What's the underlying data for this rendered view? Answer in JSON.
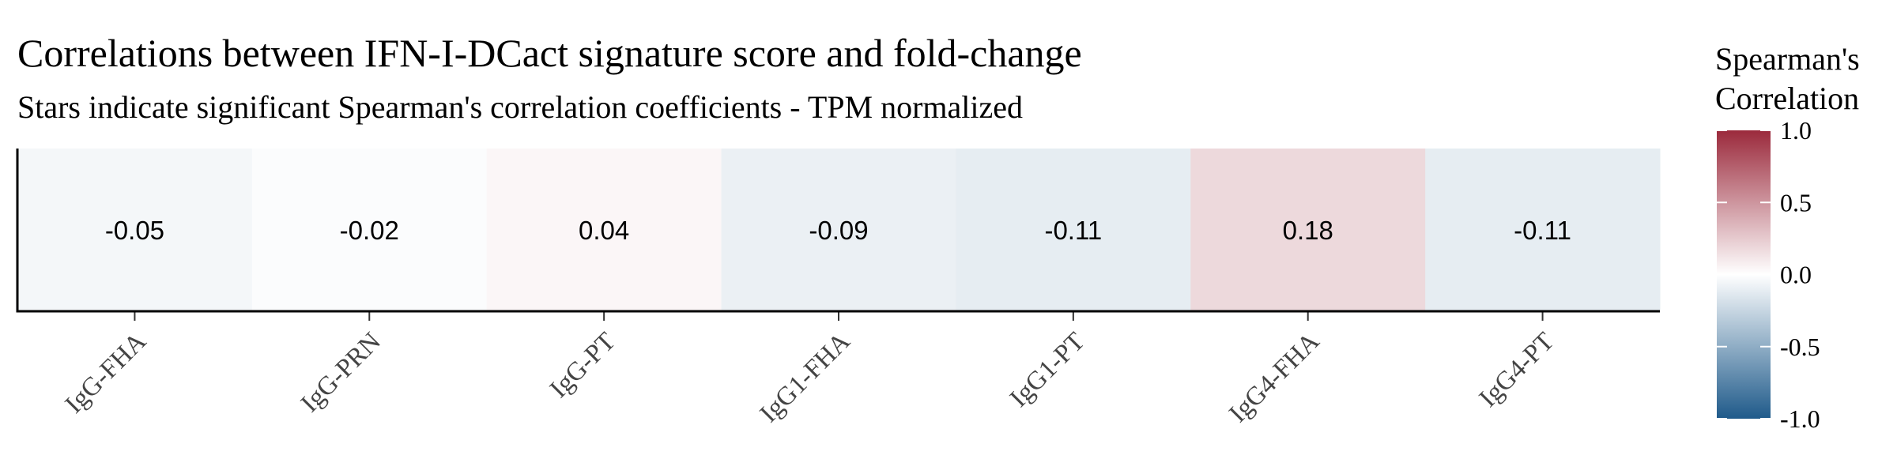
{
  "chart_data": {
    "type": "heatmap",
    "title": "Correlations between IFN-I-DCact signature score and fold-change",
    "subtitle": "Stars indicate significant Spearman's correlation coefficients - TPM normalized",
    "categories": [
      "IgG-FHA",
      "IgG-PRN",
      "IgG-PT",
      "IgG1-FHA",
      "IgG1-PT",
      "IgG4-FHA",
      "IgG4-PT"
    ],
    "values": [
      -0.05,
      -0.02,
      0.04,
      -0.09,
      -0.11,
      0.18,
      -0.11
    ],
    "value_labels": [
      "-0.05",
      "-0.02",
      "0.04",
      "-0.09",
      "-0.11",
      "0.18",
      "-0.11"
    ],
    "legend": {
      "title_lines": [
        "Spearman's",
        "Correlation"
      ],
      "limits": [
        -1.0,
        1.0
      ],
      "ticks": [
        1.0,
        0.5,
        0.0,
        -0.5,
        -1.0
      ],
      "tick_labels": [
        "1.0",
        "0.5",
        "0.0",
        "-0.5",
        "-1.0"
      ],
      "placement": "right"
    },
    "colors": {
      "low": "#1f5a8a",
      "mid": "#ffffff",
      "high": "#9b2a3c"
    },
    "grid": false
  }
}
